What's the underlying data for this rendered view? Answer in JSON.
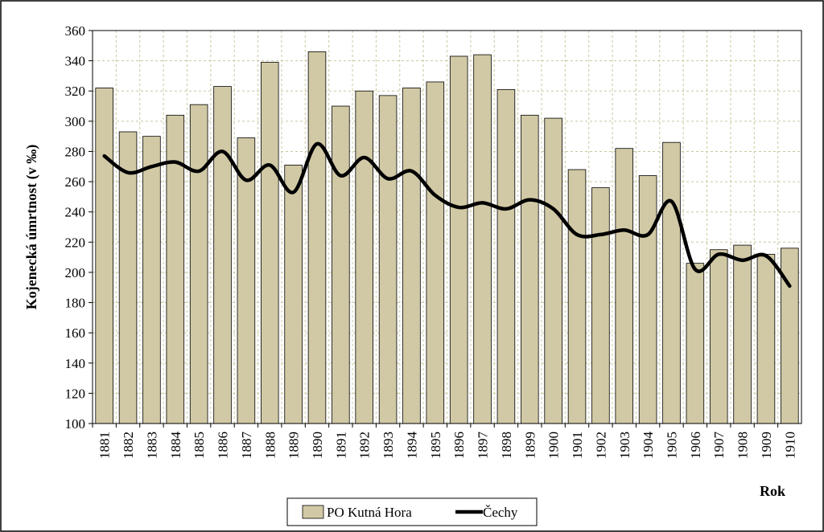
{
  "chart_data": {
    "type": "bar",
    "categories": [
      "1881",
      "1882",
      "1883",
      "1884",
      "1885",
      "1886",
      "1887",
      "1888",
      "1889",
      "1890",
      "1891",
      "1892",
      "1893",
      "1894",
      "1895",
      "1896",
      "1897",
      "1898",
      "1899",
      "1900",
      "1901",
      "1902",
      "1903",
      "1904",
      "1905",
      "1906",
      "1907",
      "1908",
      "1909",
      "1910"
    ],
    "series": [
      {
        "name": "PO Kutná Hora",
        "type": "bar",
        "color": "#d1c9a5",
        "values": [
          322,
          293,
          290,
          304,
          311,
          323,
          289,
          339,
          271,
          346,
          310,
          320,
          317,
          322,
          326,
          343,
          344,
          321,
          304,
          302,
          268,
          256,
          282,
          264,
          286,
          206,
          215,
          218,
          212,
          216
        ]
      },
      {
        "name": "Čechy",
        "type": "line",
        "color": "#000000",
        "values": [
          277,
          266,
          270,
          273,
          267,
          280,
          261,
          271,
          253,
          285,
          264,
          276,
          262,
          267,
          251,
          243,
          246,
          242,
          248,
          242,
          225,
          225,
          228,
          225,
          247,
          202,
          212,
          208,
          211,
          191
        ]
      }
    ],
    "xlabel": "Rok",
    "ylabel": "Kojenecká úmrtnost (v ‰)",
    "ylim": [
      100,
      360
    ],
    "yticks": [
      100,
      120,
      140,
      160,
      180,
      200,
      220,
      240,
      260,
      280,
      300,
      320,
      340,
      360
    ],
    "grid": true,
    "legend_position": "bottom"
  }
}
